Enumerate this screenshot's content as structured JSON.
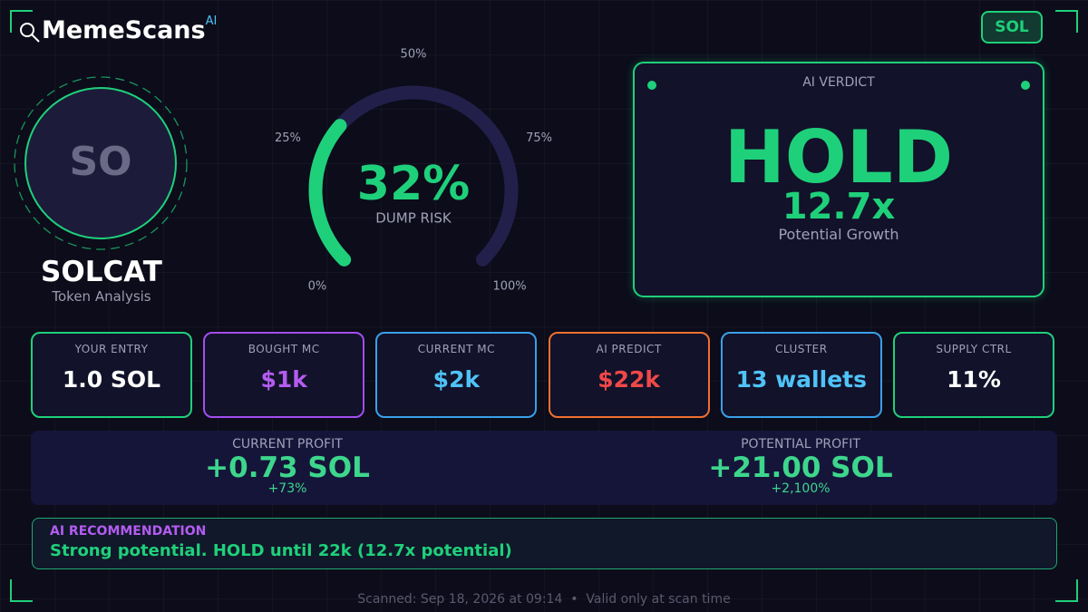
{
  "header": {
    "brand": "MemeScans",
    "brand_sup": "AI",
    "chain_badge": "SOL"
  },
  "token": {
    "avatar_text": "SO",
    "name": "SOLCAT",
    "subtitle": "Token Analysis"
  },
  "gauge": {
    "value": 32,
    "value_label": "32%",
    "caption": "DUMP RISK",
    "lim": [
      0,
      100
    ],
    "ticks": [
      {
        "value": 0,
        "label": "0%"
      },
      {
        "value": 25,
        "label": "25%"
      },
      {
        "value": 50,
        "label": "50%"
      },
      {
        "value": 75,
        "label": "75%"
      },
      {
        "value": 100,
        "label": "100%"
      }
    ]
  },
  "verdict": {
    "title": "AI VERDICT",
    "decision": "HOLD",
    "multiplier": "12.7x",
    "multiplier_caption": "Potential Growth"
  },
  "stats": [
    {
      "label": "YOUR ENTRY",
      "value": "1.0 SOL"
    },
    {
      "label": "BOUGHT MC",
      "value": "$1k"
    },
    {
      "label": "CURRENT MC",
      "value": "$2k"
    },
    {
      "label": "AI PREDICT",
      "value": "$22k"
    },
    {
      "label": "CLUSTER",
      "value": "13 wallets"
    },
    {
      "label": "SUPPLY CTRL",
      "value": "11%"
    }
  ],
  "profits": [
    {
      "label": "CURRENT PROFIT",
      "value": "+0.73 SOL",
      "percent": "+73%"
    },
    {
      "label": "POTENTIAL PROFIT",
      "value": "+21.00 SOL",
      "percent": "+2,100%"
    }
  ],
  "recommendation": {
    "title": "AI RECOMMENDATION",
    "text": "Strong potential. HOLD until 22k (12.7x potential)"
  },
  "footer": {
    "text": "Scanned: Sep 18, 2026 at 09:14  •  Valid only at scan time"
  }
}
